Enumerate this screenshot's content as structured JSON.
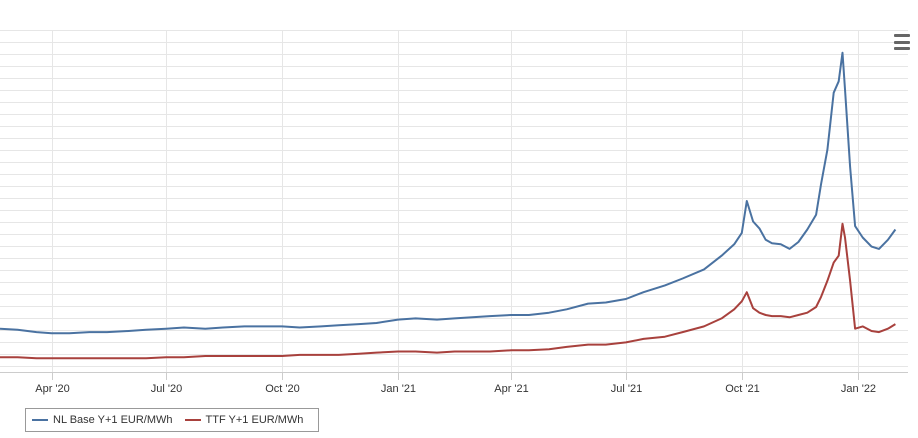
{
  "colors": {
    "nl_base": "#4a72a1",
    "ttf": "#a8413d",
    "grid": "#e6e6e6",
    "axis": "#cccccc",
    "menu": "#666666"
  },
  "menu_icon": "hamburger-menu-icon",
  "chart_data": {
    "type": "line",
    "title": "",
    "xlabel": "",
    "ylabel": "",
    "x_ticks": [
      "Apr '20",
      "Jul '20",
      "Oct '20",
      "Jan '21",
      "Apr '21",
      "Jul '21",
      "Oct '21",
      "Jan '22"
    ],
    "x_tick_dates": [
      "2020-04-01",
      "2020-07-01",
      "2020-10-01",
      "2021-01-01",
      "2021-04-01",
      "2021-07-01",
      "2021-10-01",
      "2022-01-01"
    ],
    "xlim": [
      "2020-02-20",
      "2022-02-10"
    ],
    "ylim": [
      0,
      300
    ],
    "y_axis_labels_visible": false,
    "grid": true,
    "legend_position": "bottom-left",
    "series": [
      {
        "name": "NL Base Y+1 EUR/MWh",
        "color": "#4a72a1",
        "points": [
          [
            "2020-02-20",
            38
          ],
          [
            "2020-03-05",
            37
          ],
          [
            "2020-03-20",
            35
          ],
          [
            "2020-04-01",
            34
          ],
          [
            "2020-04-15",
            34
          ],
          [
            "2020-05-01",
            35
          ],
          [
            "2020-05-15",
            35
          ],
          [
            "2020-06-01",
            36
          ],
          [
            "2020-06-15",
            37
          ],
          [
            "2020-07-01",
            38
          ],
          [
            "2020-07-15",
            39
          ],
          [
            "2020-08-01",
            38
          ],
          [
            "2020-08-15",
            39
          ],
          [
            "2020-09-01",
            40
          ],
          [
            "2020-09-15",
            40
          ],
          [
            "2020-10-01",
            40
          ],
          [
            "2020-10-15",
            39
          ],
          [
            "2020-11-01",
            40
          ],
          [
            "2020-11-15",
            41
          ],
          [
            "2020-12-01",
            42
          ],
          [
            "2020-12-15",
            43
          ],
          [
            "2021-01-01",
            46
          ],
          [
            "2021-01-15",
            47
          ],
          [
            "2021-02-01",
            46
          ],
          [
            "2021-02-15",
            47
          ],
          [
            "2021-03-01",
            48
          ],
          [
            "2021-03-15",
            49
          ],
          [
            "2021-04-01",
            50
          ],
          [
            "2021-04-15",
            50
          ],
          [
            "2021-05-01",
            52
          ],
          [
            "2021-05-15",
            55
          ],
          [
            "2021-06-01",
            60
          ],
          [
            "2021-06-15",
            61
          ],
          [
            "2021-07-01",
            64
          ],
          [
            "2021-07-15",
            70
          ],
          [
            "2021-08-01",
            76
          ],
          [
            "2021-08-15",
            82
          ],
          [
            "2021-09-01",
            90
          ],
          [
            "2021-09-15",
            102
          ],
          [
            "2021-09-25",
            112
          ],
          [
            "2021-10-01",
            122
          ],
          [
            "2021-10-05",
            150
          ],
          [
            "2021-10-10",
            132
          ],
          [
            "2021-10-15",
            126
          ],
          [
            "2021-10-20",
            116
          ],
          [
            "2021-10-25",
            113
          ],
          [
            "2021-11-01",
            112
          ],
          [
            "2021-11-08",
            108
          ],
          [
            "2021-11-15",
            114
          ],
          [
            "2021-11-22",
            125
          ],
          [
            "2021-11-29",
            138
          ],
          [
            "2021-12-03",
            165
          ],
          [
            "2021-12-08",
            195
          ],
          [
            "2021-12-13",
            245
          ],
          [
            "2021-12-17",
            255
          ],
          [
            "2021-12-20",
            280
          ],
          [
            "2021-12-22",
            248
          ],
          [
            "2021-12-26",
            180
          ],
          [
            "2021-12-30",
            128
          ],
          [
            "2022-01-05",
            118
          ],
          [
            "2022-01-12",
            110
          ],
          [
            "2022-01-18",
            108
          ],
          [
            "2022-01-25",
            116
          ],
          [
            "2022-01-31",
            125
          ]
        ]
      },
      {
        "name": "TTF Y+1 EUR/MWh",
        "color": "#a8413d",
        "points": [
          [
            "2020-02-20",
            13
          ],
          [
            "2020-03-05",
            13
          ],
          [
            "2020-03-20",
            12
          ],
          [
            "2020-04-01",
            12
          ],
          [
            "2020-04-15",
            12
          ],
          [
            "2020-05-01",
            12
          ],
          [
            "2020-05-15",
            12
          ],
          [
            "2020-06-01",
            12
          ],
          [
            "2020-06-15",
            12
          ],
          [
            "2020-07-01",
            13
          ],
          [
            "2020-07-15",
            13
          ],
          [
            "2020-08-01",
            14
          ],
          [
            "2020-08-15",
            14
          ],
          [
            "2020-09-01",
            14
          ],
          [
            "2020-09-15",
            14
          ],
          [
            "2020-10-01",
            14
          ],
          [
            "2020-10-15",
            15
          ],
          [
            "2020-11-01",
            15
          ],
          [
            "2020-11-15",
            15
          ],
          [
            "2020-12-01",
            16
          ],
          [
            "2020-12-15",
            17
          ],
          [
            "2021-01-01",
            18
          ],
          [
            "2021-01-15",
            18
          ],
          [
            "2021-02-01",
            17
          ],
          [
            "2021-02-15",
            18
          ],
          [
            "2021-03-01",
            18
          ],
          [
            "2021-03-15",
            18
          ],
          [
            "2021-04-01",
            19
          ],
          [
            "2021-04-15",
            19
          ],
          [
            "2021-05-01",
            20
          ],
          [
            "2021-05-15",
            22
          ],
          [
            "2021-06-01",
            24
          ],
          [
            "2021-06-15",
            24
          ],
          [
            "2021-07-01",
            26
          ],
          [
            "2021-07-15",
            29
          ],
          [
            "2021-08-01",
            31
          ],
          [
            "2021-08-15",
            35
          ],
          [
            "2021-09-01",
            40
          ],
          [
            "2021-09-15",
            47
          ],
          [
            "2021-09-25",
            55
          ],
          [
            "2021-10-01",
            62
          ],
          [
            "2021-10-05",
            70
          ],
          [
            "2021-10-10",
            56
          ],
          [
            "2021-10-15",
            52
          ],
          [
            "2021-10-20",
            50
          ],
          [
            "2021-10-25",
            49
          ],
          [
            "2021-11-01",
            49
          ],
          [
            "2021-11-08",
            48
          ],
          [
            "2021-11-15",
            50
          ],
          [
            "2021-11-22",
            52
          ],
          [
            "2021-11-29",
            57
          ],
          [
            "2021-12-03",
            66
          ],
          [
            "2021-12-08",
            80
          ],
          [
            "2021-12-13",
            96
          ],
          [
            "2021-12-17",
            102
          ],
          [
            "2021-12-20",
            130
          ],
          [
            "2021-12-22",
            118
          ],
          [
            "2021-12-26",
            80
          ],
          [
            "2021-12-30",
            38
          ],
          [
            "2022-01-05",
            40
          ],
          [
            "2022-01-12",
            36
          ],
          [
            "2022-01-18",
            35
          ],
          [
            "2022-01-25",
            38
          ],
          [
            "2022-01-31",
            42
          ]
        ]
      }
    ]
  }
}
